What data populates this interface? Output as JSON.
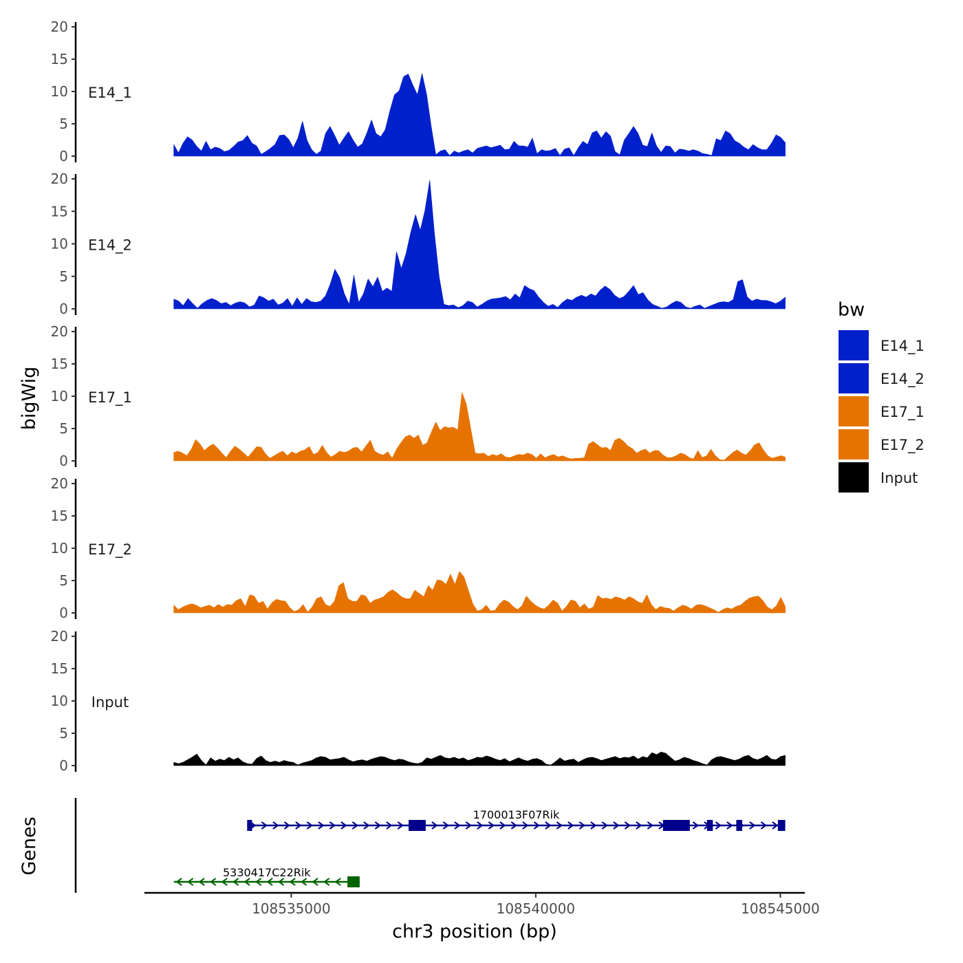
{
  "chart_data": {
    "type": "area",
    "description_axis": {
      "y_title": "bigWig",
      "genes_title": "Genes",
      "x_title": "chr3 position (bp)",
      "x_ticks": [
        108535000,
        108540000,
        108545000
      ],
      "x_tick_labels": [
        "108535000",
        "108540000",
        "108545000"
      ],
      "xlim": [
        108532000,
        108545500
      ]
    },
    "ylim": [
      0,
      20
    ],
    "y_ticks": [
      0,
      5,
      10,
      15,
      20
    ],
    "y_tick_labels": [
      "0",
      "5",
      "10",
      "15",
      "20"
    ],
    "x_range": [
      108532600,
      108545100
    ],
    "tracks": [
      {
        "name": "E14_1",
        "color": "#0020CC",
        "values": [
          1.8,
          0.5,
          2.0,
          3.0,
          2.5,
          1.5,
          0.8,
          2.3,
          1.0,
          1.4,
          1.2,
          0.7,
          0.9,
          1.5,
          2.2,
          2.4,
          3.2,
          2.0,
          1.6,
          0.3,
          0.7,
          1.2,
          1.8,
          3.2,
          3.3,
          2.6,
          1.3,
          2.8,
          5.4,
          2.4,
          1.0,
          0.3,
          0.8,
          3.5,
          4.6,
          3.2,
          1.7,
          2.8,
          3.8,
          2.5,
          1.4,
          1.9,
          3.6,
          5.6,
          3.5,
          3.0,
          4.1,
          7.0,
          9.5,
          10.1,
          12.3,
          12.7,
          11.0,
          9.5,
          12.8,
          9.5,
          4.6,
          0.2,
          0.8,
          1.0,
          0.1,
          0.8,
          0.5,
          0.8,
          1.0,
          0.5,
          1.2,
          1.4,
          1.6,
          1.3,
          1.5,
          1.7,
          1.0,
          1.1,
          2.3,
          1.6,
          1.6,
          1.4,
          2.8,
          0.4,
          1.0,
          0.8,
          0.9,
          1.2,
          0.1,
          1.1,
          1.3,
          0.1,
          1.3,
          2.3,
          1.8,
          3.6,
          3.9,
          2.8,
          3.8,
          3.1,
          0.7,
          0.2,
          2.5,
          3.5,
          4.6,
          3.5,
          1.7,
          1.5,
          3.6,
          1.6,
          0.6,
          1.6,
          1.5,
          0.5,
          1.1,
          1.0,
          0.8,
          1.0,
          0.8,
          0.4,
          0.3,
          0.1,
          2.7,
          2.4,
          3.9,
          3.5,
          2.4,
          2.0,
          1.4,
          1.0,
          1.8,
          1.3,
          1.0,
          1.0,
          2.0,
          3.3,
          2.9,
          2.1
        ]
      },
      {
        "name": "E14_2",
        "color": "#0020CC",
        "values": [
          1.5,
          1.2,
          0.5,
          1.6,
          0.8,
          0.1,
          0.8,
          1.3,
          1.6,
          1.3,
          0.8,
          1.0,
          0.5,
          0.9,
          1.1,
          0.9,
          0.3,
          0.6,
          2.0,
          1.7,
          1.2,
          1.5,
          0.6,
          0.9,
          1.6,
          0.4,
          1.7,
          0.7,
          1.6,
          1.1,
          1.0,
          1.2,
          2.0,
          3.8,
          6.1,
          4.8,
          2.3,
          0.7,
          5.2,
          1.0,
          2.3,
          4.6,
          3.4,
          4.9,
          2.7,
          3.2,
          2.7,
          8.8,
          6.2,
          8.5,
          11.8,
          14.5,
          12.1,
          15.2,
          19.8,
          11.5,
          4.9,
          0.7,
          0.5,
          0.6,
          0.2,
          0.5,
          1.2,
          1.0,
          0.3,
          0.7,
          1.2,
          1.5,
          1.6,
          1.7,
          1.9,
          1.4,
          2.3,
          1.7,
          3.6,
          3.1,
          2.8,
          1.8,
          1.0,
          0.4,
          0.7,
          0.2,
          1.0,
          1.5,
          1.3,
          1.8,
          2.1,
          1.8,
          2.3,
          2.0,
          2.9,
          3.5,
          3.0,
          2.1,
          1.6,
          1.9,
          2.7,
          3.6,
          2.2,
          2.5,
          1.4,
          0.7,
          0.4,
          0.1,
          0.3,
          0.8,
          1.2,
          1.0,
          0.3,
          0.1,
          0.4,
          0.6,
          0.1,
          0.4,
          0.7,
          1.0,
          1.1,
          1.0,
          1.4,
          4.2,
          4.5,
          1.8,
          1.2,
          1.5,
          1.3,
          1.3,
          1.1,
          0.8,
          1.2,
          1.8
        ]
      },
      {
        "name": "E17_1",
        "color": "#E67300",
        "values": [
          1.3,
          1.5,
          1.2,
          0.8,
          1.8,
          3.3,
          2.6,
          1.6,
          2.2,
          2.6,
          2.0,
          1.2,
          0.5,
          1.5,
          2.3,
          1.8,
          1.2,
          0.6,
          1.4,
          2.2,
          2.1,
          1.1,
          0.4,
          0.8,
          1.2,
          1.5,
          0.8,
          1.4,
          1.1,
          1.5,
          1.7,
          2.2,
          1.0,
          1.3,
          2.4,
          1.3,
          0.6,
          1.0,
          1.5,
          1.3,
          1.5,
          2.0,
          2.1,
          1.4,
          2.3,
          3.2,
          1.5,
          1.1,
          0.9,
          1.4,
          0.4,
          1.8,
          2.8,
          3.7,
          4.0,
          3.5,
          4.0,
          2.4,
          2.8,
          4.5,
          6.0,
          4.7,
          5.3,
          5.1,
          5.2,
          4.8,
          10.6,
          8.7,
          5.0,
          1.2,
          1.1,
          1.2,
          0.7,
          1.0,
          0.8,
          1.1,
          0.6,
          0.5,
          0.8,
          1.0,
          0.9,
          1.2,
          1.0,
          0.4,
          1.1,
          0.5,
          0.8,
          1.0,
          0.6,
          0.8,
          0.5,
          0.3,
          0.4,
          0.4,
          0.5,
          2.6,
          3.0,
          2.5,
          2.0,
          2.1,
          1.6,
          3.2,
          3.5,
          3.0,
          2.3,
          1.9,
          1.2,
          1.6,
          1.8,
          1.2,
          1.6,
          1.6,
          0.9,
          0.5,
          0.5,
          0.8,
          1.2,
          1.0,
          0.5,
          0.3,
          1.6,
          0.5,
          0.8,
          1.8,
          0.8,
          0.2,
          0.1,
          0.7,
          1.3,
          1.7,
          1.2,
          0.9,
          1.6,
          2.5,
          2.8,
          1.7,
          0.8,
          0.4,
          0.6,
          0.8,
          0.6
        ]
      },
      {
        "name": "E17_2",
        "color": "#E67300",
        "values": [
          1.2,
          0.5,
          0.9,
          1.2,
          1.4,
          1.2,
          0.8,
          1.0,
          1.2,
          0.8,
          1.3,
          0.9,
          1.3,
          1.2,
          1.9,
          2.2,
          1.0,
          2.8,
          2.6,
          1.5,
          1.8,
          0.6,
          1.6,
          2.1,
          1.9,
          1.8,
          0.8,
          0.2,
          0.5,
          1.3,
          0.1,
          0.9,
          2.2,
          2.5,
          1.3,
          1.0,
          1.8,
          4.2,
          4.7,
          2.2,
          1.8,
          1.8,
          2.8,
          2.6,
          1.5,
          2.0,
          2.2,
          2.5,
          3.2,
          3.6,
          3.1,
          2.5,
          2.2,
          2.2,
          3.5,
          3.0,
          2.5,
          4.2,
          3.5,
          5.1,
          5.0,
          4.4,
          6.0,
          4.4,
          6.4,
          5.6,
          3.5,
          1.4,
          0.3,
          0.5,
          1.2,
          0.3,
          0.4,
          1.4,
          2.0,
          1.7,
          1.0,
          0.5,
          1.1,
          2.6,
          1.8,
          1.2,
          0.8,
          0.6,
          1.2,
          2.0,
          1.5,
          0.3,
          1.0,
          2.0,
          1.8,
          0.8,
          1.4,
          0.6,
          0.9,
          2.7,
          2.2,
          2.3,
          2.1,
          2.5,
          2.3,
          2.0,
          2.5,
          2.2,
          1.7,
          1.5,
          2.8,
          1.3,
          0.5,
          1.0,
          0.8,
          0.7,
          0.3,
          0.8,
          1.2,
          1.0,
          0.6,
          1.2,
          1.3,
          1.1,
          0.8,
          0.5,
          0.1,
          0.5,
          0.8,
          0.6,
          1.0,
          1.2,
          1.8,
          2.3,
          2.5,
          2.6,
          1.9,
          0.9,
          0.5,
          1.1,
          2.4,
          1.0
        ]
      },
      {
        "name": "Input",
        "color": "#000000",
        "values": [
          0.5,
          0.3,
          0.5,
          0.9,
          1.3,
          1.8,
          0.8,
          0.1,
          1.2,
          0.7,
          1.0,
          0.8,
          1.3,
          0.9,
          1.2,
          0.6,
          0.3,
          0.2,
          1.1,
          1.5,
          0.8,
          0.5,
          0.7,
          0.5,
          0.8,
          0.6,
          0.5,
          0.1,
          0.4,
          0.6,
          0.8,
          1.2,
          1.4,
          1.3,
          0.9,
          1.0,
          1.1,
          1.3,
          0.9,
          0.6,
          0.8,
          0.9,
          0.7,
          1.0,
          1.2,
          1.4,
          1.3,
          1.0,
          0.8,
          1.0,
          0.9,
          0.6,
          0.4,
          0.3,
          0.5,
          1.2,
          1.0,
          1.3,
          1.6,
          1.2,
          1.1,
          1.3,
          1.0,
          1.2,
          0.8,
          1.0,
          1.3,
          1.2,
          1.5,
          1.3,
          1.0,
          0.8,
          1.1,
          0.6,
          0.9,
          1.2,
          0.9,
          0.7,
          1.0,
          1.1,
          0.8,
          0.2,
          0.1,
          0.6,
          1.2,
          0.7,
          0.9,
          1.0,
          0.5,
          0.9,
          1.2,
          1.3,
          1.1,
          0.8,
          1.0,
          1.2,
          1.4,
          1.1,
          1.3,
          1.2,
          1.5,
          1.0,
          1.4,
          1.2,
          2.0,
          1.7,
          2.1,
          1.9,
          1.3,
          0.7,
          0.9,
          1.3,
          1.1,
          0.8,
          0.6,
          0.3,
          0.1,
          0.9,
          1.3,
          1.4,
          1.2,
          1.0,
          0.8,
          1.0,
          1.4,
          1.6,
          1.1,
          0.9,
          1.2,
          1.6,
          1.0,
          0.9,
          1.4,
          1.6
        ]
      }
    ],
    "genes": [
      {
        "name": "1700013F07Rik",
        "strand": "+",
        "color": "#00008B",
        "start": 108534100,
        "end": 108545100,
        "exons": [
          [
            108534100,
            108534200
          ],
          [
            108537400,
            108537750
          ],
          [
            108542600,
            108543150
          ],
          [
            108543500,
            108543620
          ],
          [
            108544100,
            108544220
          ],
          [
            108544950,
            108545100
          ]
        ]
      },
      {
        "name": "5330417C22Rik",
        "strand": "-",
        "color": "#006400",
        "start": 108532600,
        "end": 108536400,
        "exons": [
          [
            108536150,
            108536400
          ]
        ]
      }
    ],
    "legend": {
      "title": "bw",
      "items": [
        {
          "label": "E14_1",
          "color": "#0020CC"
        },
        {
          "label": "E14_2",
          "color": "#0020CC"
        },
        {
          "label": "E17_1",
          "color": "#E67300"
        },
        {
          "label": "E17_2",
          "color": "#E67300"
        },
        {
          "label": "Input",
          "color": "#000000"
        }
      ]
    }
  }
}
